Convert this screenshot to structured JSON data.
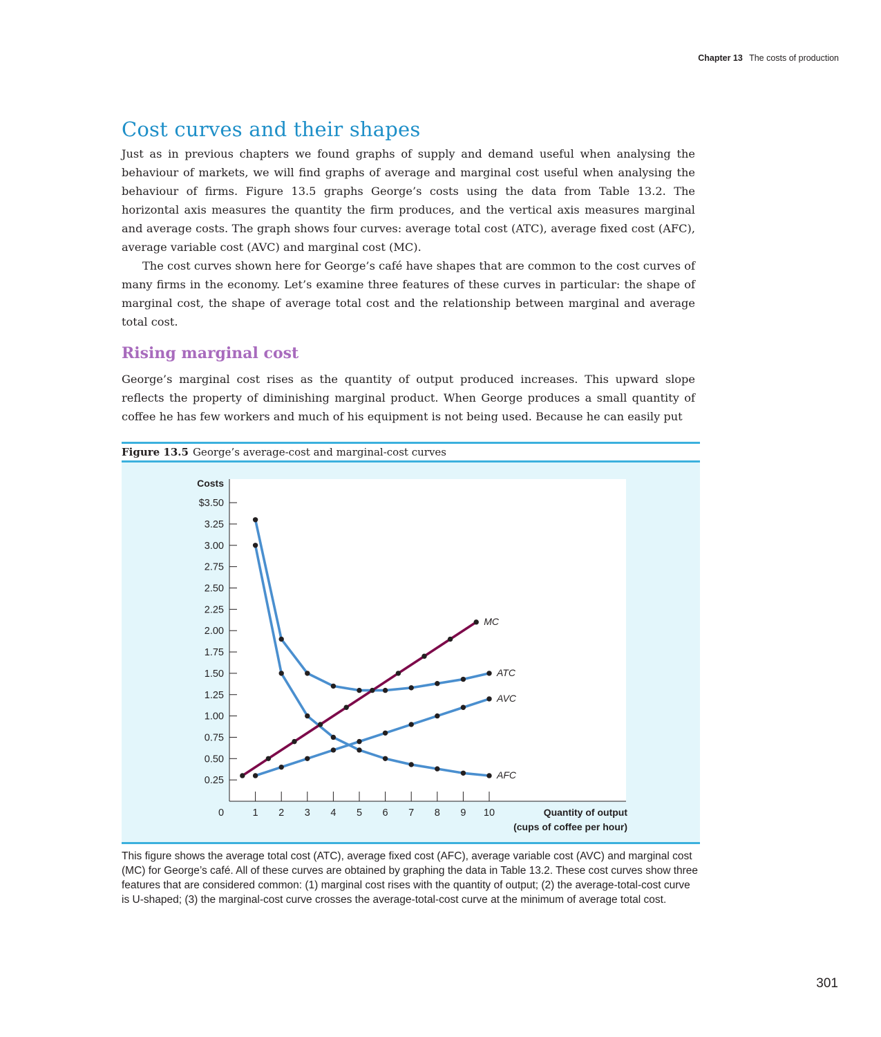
{
  "running_head": {
    "chapter": "Chapter 13",
    "title": "The costs of production"
  },
  "section": {
    "title": "Cost curves and their shapes"
  },
  "paragraphs": [
    "Just as in previous chapters we found graphs of supply and demand useful when analysing the behaviour of markets, we will find graphs of average and marginal cost useful when analysing the behaviour of firms. Figure 13.5 graphs George’s costs using the data from Table 13.2. The horizontal axis measures the quantity the firm produces, and the vertical axis measures marginal and average costs. The graph shows four curves: average total cost (ATC), average fixed cost (AFC), average variable cost (AVC) and marginal cost (MC).",
    "The cost curves shown here for George’s café have shapes that are common to the cost curves of many firms in the economy. Let’s examine three features of these curves in particular: the shape of marginal cost, the shape of average total cost and the relationship between marginal and average total cost."
  ],
  "subsection": {
    "title": "Rising marginal cost",
    "paragraph": "George’s marginal cost rises as the quantity of output produced increases. This upward slope reflects the property of diminishing marginal product. When George produces a small quantity of coffee he has few workers and much of his equipment is not being used. Because he can easily put"
  },
  "figure": {
    "number": "Figure 13.5",
    "caption": "George’s average-cost and marginal-cost curves",
    "note": "This figure shows the average total cost (ATC), average fixed cost (AFC), average variable cost (AVC) and marginal cost (MC) for George’s café. All of these curves are obtained by graphing the data in Table 13.2. These cost curves show three features that are considered common: (1) marginal cost rises with the quantity of output; (2) the average-total-cost curve is U-shaped; (3) the marginal-cost curve crosses the average-total-cost curve at the minimum of average total cost."
  },
  "page_number": "301",
  "colors": {
    "blue_curve": "#4a8fcf",
    "mc_curve": "#7d0a4a",
    "panel": "#e3f6fb",
    "rule": "#3bb0dd",
    "title": "#1e8fc8",
    "subhead": "#a86bbd"
  },
  "chart_data": {
    "type": "line",
    "ylabel": "Costs",
    "xlabel_line1": "Quantity of output",
    "xlabel_line2": "(cups of coffee per hour)",
    "xlim": [
      0,
      14.5
    ],
    "ylim": [
      0,
      3.6
    ],
    "x_ticks": [
      1,
      2,
      3,
      4,
      5,
      6,
      7,
      8,
      9,
      10
    ],
    "x_tick_labels": [
      "1",
      "2",
      "3",
      "4",
      "5",
      "6",
      "7",
      "8",
      "9",
      "10"
    ],
    "origin_label": "0",
    "y_ticks": [
      0.25,
      0.5,
      0.75,
      1.0,
      1.25,
      1.5,
      1.75,
      2.0,
      2.25,
      2.5,
      2.75,
      3.0,
      3.25,
      3.5
    ],
    "y_tick_labels": [
      "0.25",
      "0.50",
      "0.75",
      "1.00",
      "1.25",
      "1.50",
      "1.75",
      "2.00",
      "2.25",
      "2.50",
      "2.75",
      "3.00",
      "3.25",
      "$3.50"
    ],
    "series": [
      {
        "name": "ATC",
        "color": "#4a8fcf",
        "x": [
          1,
          2,
          3,
          4,
          5,
          6,
          7,
          8,
          9,
          10
        ],
        "y": [
          3.3,
          1.9,
          1.5,
          1.35,
          1.3,
          1.3,
          1.33,
          1.38,
          1.43,
          1.5
        ]
      },
      {
        "name": "AFC",
        "color": "#4a8fcf",
        "x": [
          1,
          2,
          3,
          4,
          5,
          6,
          7,
          8,
          9,
          10
        ],
        "y": [
          3.0,
          1.5,
          1.0,
          0.75,
          0.6,
          0.5,
          0.43,
          0.38,
          0.33,
          0.3
        ]
      },
      {
        "name": "AVC",
        "color": "#4a8fcf",
        "x": [
          1,
          2,
          3,
          4,
          5,
          6,
          7,
          8,
          9,
          10
        ],
        "y": [
          0.3,
          0.4,
          0.5,
          0.6,
          0.7,
          0.8,
          0.9,
          1.0,
          1.1,
          1.2
        ]
      },
      {
        "name": "MC",
        "color": "#7d0a4a",
        "x": [
          0.5,
          1.5,
          2.5,
          3.5,
          4.5,
          5.5,
          6.5,
          7.5,
          8.5,
          9.5
        ],
        "y": [
          0.3,
          0.5,
          0.7,
          0.9,
          1.1,
          1.3,
          1.5,
          1.7,
          1.9,
          2.1
        ]
      }
    ]
  }
}
